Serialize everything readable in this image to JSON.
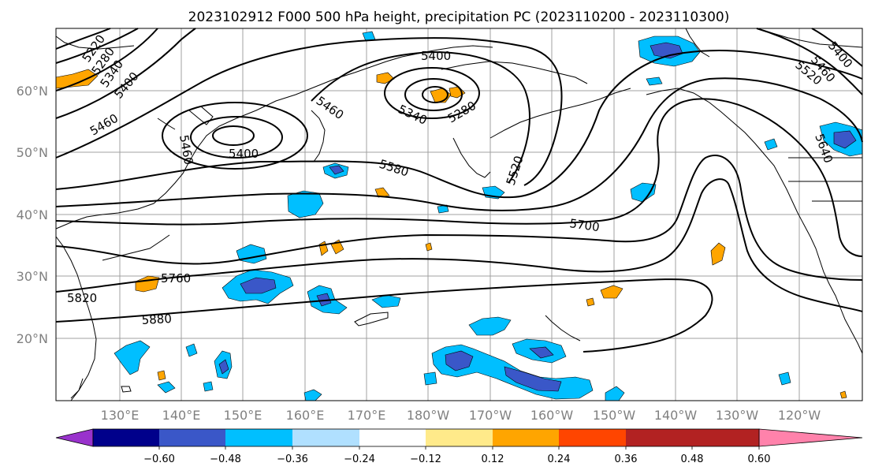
{
  "title": "2023102912 F000 500 hPa height, precipitation PC (2023110200 - 2023110300)",
  "map": {
    "lon_ticks": [
      "130°E",
      "140°E",
      "150°E",
      "160°E",
      "170°E",
      "180°W",
      "170°W",
      "160°W",
      "150°W",
      "140°W",
      "130°W",
      "120°W"
    ],
    "lat_ticks": [
      "20°N",
      "30°N",
      "40°N",
      "50°N",
      "60°N"
    ],
    "contour_labels": [
      {
        "text": "5220"
      },
      {
        "text": "5280"
      },
      {
        "text": "5340"
      },
      {
        "text": "5400"
      },
      {
        "text": "5460"
      },
      {
        "text": "5460"
      },
      {
        "text": "5400"
      },
      {
        "text": "5400"
      },
      {
        "text": "5460"
      },
      {
        "text": "5340"
      },
      {
        "text": "5280"
      },
      {
        "text": "5580"
      },
      {
        "text": "5520"
      },
      {
        "text": "5700"
      },
      {
        "text": "5760"
      },
      {
        "text": "5820"
      },
      {
        "text": "5880"
      },
      {
        "text": "5520"
      },
      {
        "text": "5460"
      },
      {
        "text": "5400"
      },
      {
        "text": "5640"
      }
    ]
  },
  "colorbar": {
    "tick_labels": [
      "−0.60",
      "−0.48",
      "−0.36",
      "−0.24",
      "−0.12",
      "0.12",
      "0.24",
      "0.36",
      "0.48",
      "0.60"
    ],
    "colors": [
      "#9932cc",
      "#00008b",
      "#3a57c8",
      "#00bfff",
      "#b0e0ff",
      "#ffffff",
      "#ffea8a",
      "#ffa500",
      "#ff4500",
      "#b22222",
      "#ff82ab"
    ]
  }
}
